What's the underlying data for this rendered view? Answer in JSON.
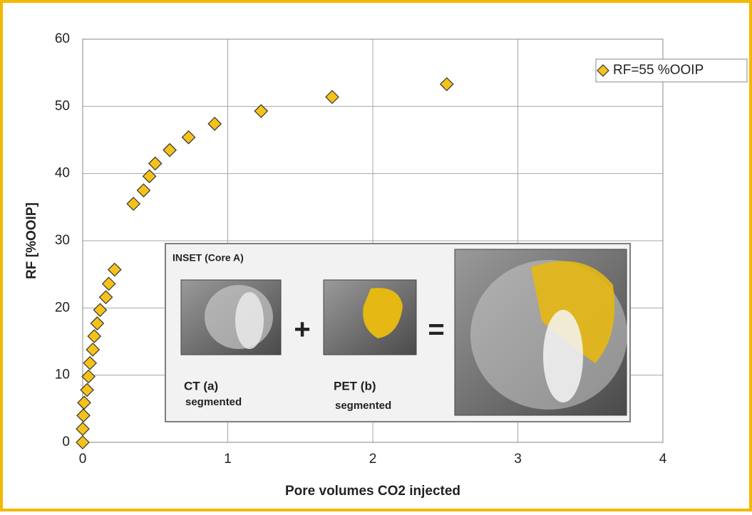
{
  "chart_data": {
    "type": "scatter",
    "x_label": "Pore volumes CO2 injected",
    "y_label": "RF [%OOIP]",
    "xlim": [
      0,
      4
    ],
    "xticks": [
      0,
      1,
      2,
      3,
      4
    ],
    "ylim": [
      0,
      60
    ],
    "yticks": [
      0,
      10,
      20,
      30,
      40,
      50,
      60
    ],
    "grid": true,
    "legend": "top-right",
    "series": [
      {
        "name": "RF=55 %OOIP",
        "color": "#f5c21b",
        "x": [
          0,
          0,
          0.005,
          0.01,
          0.03,
          0.04,
          0.05,
          0.07,
          0.08,
          0.1,
          0.12,
          0.16,
          0.18,
          0.22,
          0.35,
          0.42,
          0.46,
          0.5,
          0.6,
          0.73,
          0.91,
          1.23,
          1.72,
          2.51
        ],
        "values": [
          0,
          2,
          4,
          5.9,
          7.8,
          9.8,
          11.8,
          13.8,
          15.8,
          17.7,
          19.7,
          21.6,
          23.6,
          25.7,
          35.5,
          37.5,
          39.6,
          41.5,
          43.5,
          45.4,
          47.4,
          49.3,
          51.4,
          53.3
        ]
      }
    ],
    "inset": {
      "title": "INSET (Core A)",
      "panels": [
        {
          "label": "CT (a)",
          "sublabel": "segmented"
        },
        {
          "label": "PET (b)",
          "sublabel": "segmented"
        }
      ],
      "operators": [
        "+",
        "="
      ]
    }
  }
}
